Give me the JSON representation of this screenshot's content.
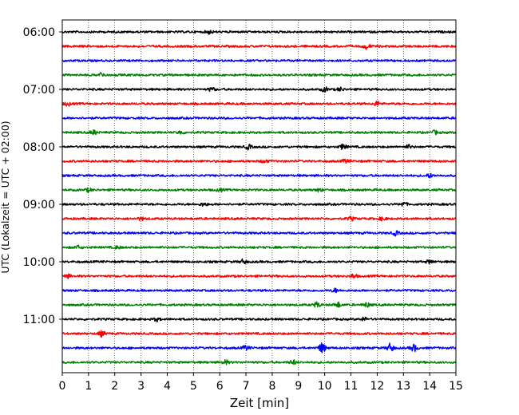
{
  "chart_data": {
    "type": "line",
    "title": "",
    "xlabel": "Zeit  [min]",
    "ylabel": "UTC (Lokalzeit = UTC + 02:00)",
    "xlim": [
      0,
      15
    ],
    "xticks": [
      0,
      1,
      2,
      3,
      4,
      5,
      6,
      7,
      8,
      9,
      10,
      11,
      12,
      13,
      14,
      15
    ],
    "ytick_labels": [
      "06:00",
      "07:00",
      "08:00",
      "09:00",
      "10:00",
      "11:00"
    ],
    "row_interval_minutes": 15,
    "start_time": "06:00",
    "grid": "vertical dotted lines at each minute",
    "colors": [
      "#000000",
      "#ff0000",
      "#0000ff",
      "#008000"
    ],
    "series": [
      {
        "start": "06:00",
        "color": "#000000",
        "events": [
          [
            5.6,
            2.0
          ]
        ]
      },
      {
        "start": "06:15",
        "color": "#ff0000",
        "events": [
          [
            11.6,
            3.0
          ]
        ]
      },
      {
        "start": "06:30",
        "color": "#0000ff",
        "events": []
      },
      {
        "start": "06:45",
        "color": "#008000",
        "events": [
          [
            1.5,
            2.5
          ]
        ]
      },
      {
        "start": "07:00",
        "color": "#000000",
        "events": [
          [
            5.7,
            2.0
          ],
          [
            10.0,
            2.5
          ],
          [
            10.6,
            2.0
          ]
        ]
      },
      {
        "start": "07:15",
        "color": "#ff0000",
        "events": [
          [
            0.2,
            2.0
          ],
          [
            12.0,
            2.5
          ]
        ]
      },
      {
        "start": "07:30",
        "color": "#0000ff",
        "events": []
      },
      {
        "start": "07:45",
        "color": "#008000",
        "events": [
          [
            1.2,
            2.5
          ],
          [
            4.5,
            2.0
          ],
          [
            14.2,
            2.0
          ]
        ]
      },
      {
        "start": "08:00",
        "color": "#000000",
        "events": [
          [
            7.1,
            2.5
          ],
          [
            10.7,
            3.0
          ],
          [
            13.2,
            2.0
          ]
        ]
      },
      {
        "start": "08:15",
        "color": "#ff0000",
        "events": [
          [
            7.7,
            2.0
          ],
          [
            10.8,
            2.0
          ]
        ]
      },
      {
        "start": "08:30",
        "color": "#0000ff",
        "events": [
          [
            14.0,
            2.0
          ]
        ]
      },
      {
        "start": "08:45",
        "color": "#008000",
        "events": [
          [
            1.0,
            2.0
          ],
          [
            6.0,
            1.5
          ],
          [
            9.8,
            1.5
          ]
        ]
      },
      {
        "start": "09:00",
        "color": "#000000",
        "events": [
          [
            5.4,
            2.0
          ],
          [
            13.0,
            2.5
          ]
        ]
      },
      {
        "start": "09:15",
        "color": "#ff0000",
        "events": [
          [
            3.0,
            1.5
          ],
          [
            11.0,
            2.0
          ],
          [
            12.2,
            2.0
          ]
        ]
      },
      {
        "start": "09:30",
        "color": "#0000ff",
        "events": [
          [
            12.7,
            2.5
          ]
        ]
      },
      {
        "start": "09:45",
        "color": "#008000",
        "events": [
          [
            0.6,
            2.0
          ],
          [
            2.1,
            1.5
          ]
        ]
      },
      {
        "start": "10:00",
        "color": "#000000",
        "events": [
          [
            6.9,
            2.5
          ],
          [
            14.0,
            2.0
          ]
        ]
      },
      {
        "start": "10:15",
        "color": "#ff0000",
        "events": [
          [
            0.2,
            2.0
          ],
          [
            11.1,
            2.5
          ]
        ]
      },
      {
        "start": "10:30",
        "color": "#0000ff",
        "events": [
          [
            10.4,
            2.0
          ]
        ]
      },
      {
        "start": "10:45",
        "color": "#008000",
        "events": [
          [
            9.7,
            3.0
          ],
          [
            10.5,
            3.0
          ],
          [
            11.6,
            2.5
          ]
        ]
      },
      {
        "start": "11:00",
        "color": "#000000",
        "events": [
          [
            3.6,
            2.0
          ],
          [
            11.5,
            2.0
          ]
        ]
      },
      {
        "start": "11:15",
        "color": "#ff0000",
        "events": [
          [
            1.5,
            3.0
          ]
        ]
      },
      {
        "start": "11:30",
        "color": "#0000ff",
        "events": [
          [
            9.9,
            6.0
          ],
          [
            12.5,
            5.0
          ],
          [
            13.4,
            4.0
          ],
          [
            7.0,
            2.5
          ]
        ]
      },
      {
        "start": "11:45",
        "color": "#008000",
        "events": [
          [
            6.2,
            2.5
          ],
          [
            8.8,
            2.5
          ]
        ]
      }
    ]
  }
}
